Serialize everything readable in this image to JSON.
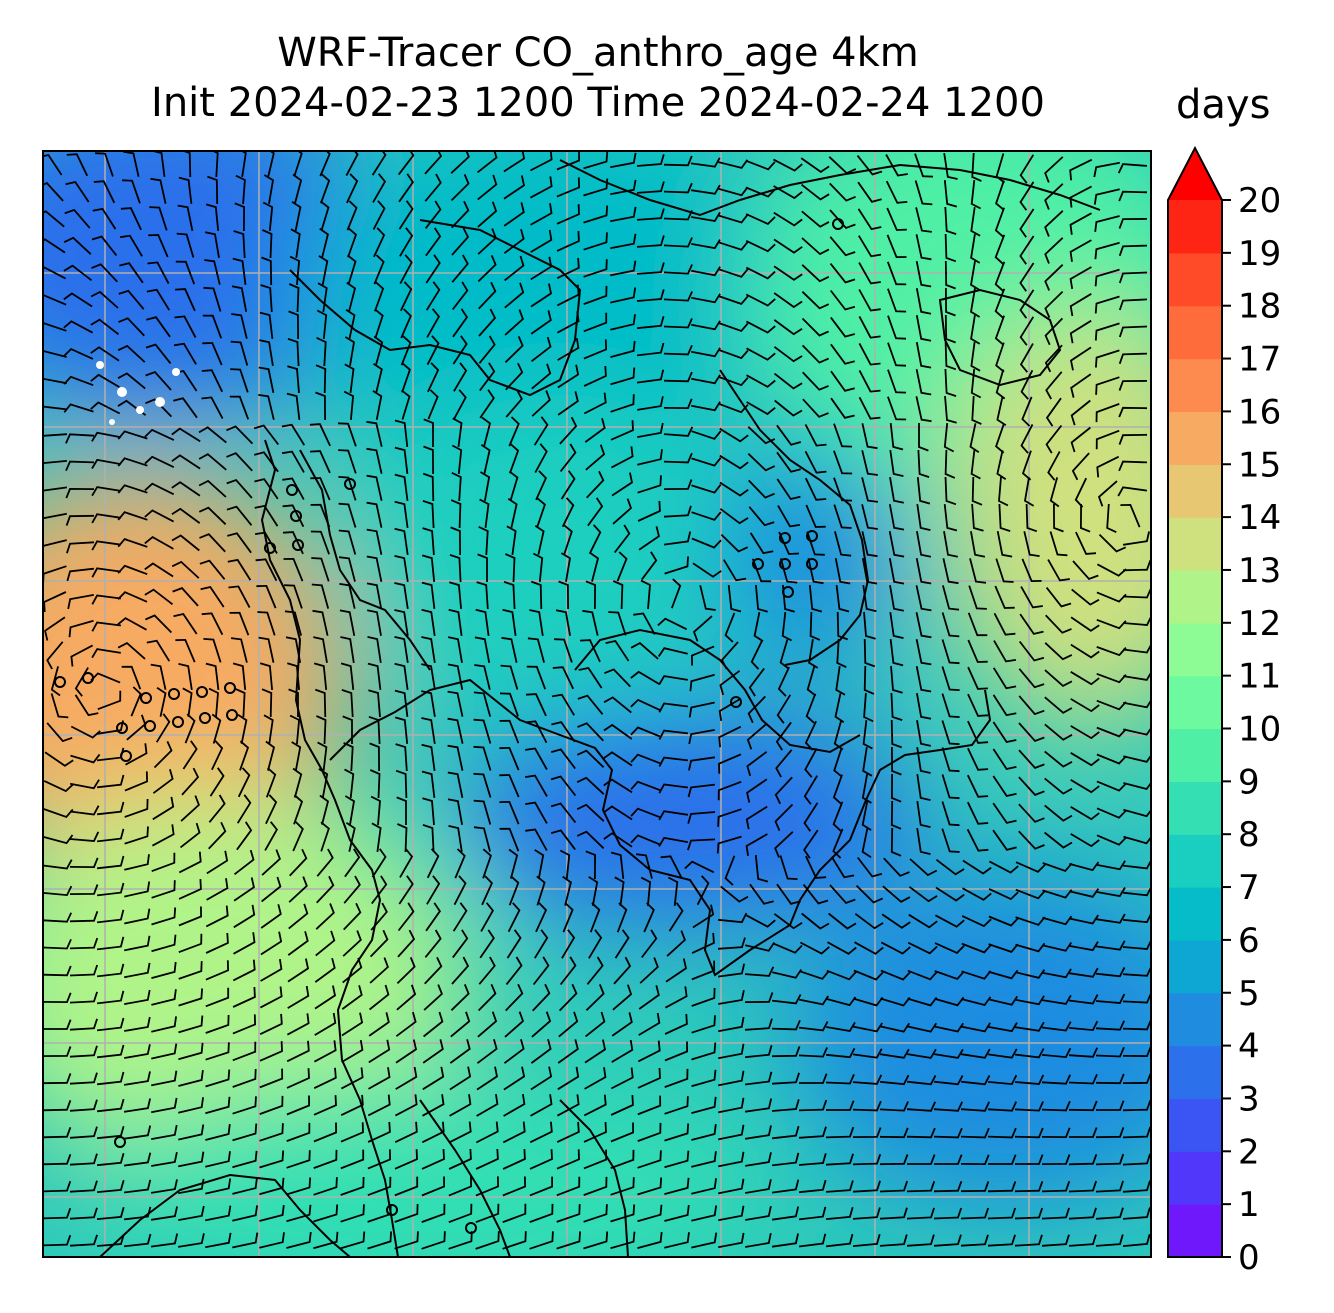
{
  "title": {
    "line1": "WRF-Tracer CO_anthro_age 4km",
    "line2": "Init 2024-02-23 1200 Time 2024-02-24 1200"
  },
  "colorbar": {
    "units": "days",
    "ticks": [
      "0",
      "1",
      "2",
      "3",
      "4",
      "5",
      "6",
      "7",
      "8",
      "9",
      "10",
      "11",
      "12",
      "13",
      "14",
      "15",
      "16",
      "17",
      "18",
      "19",
      "20"
    ],
    "levels": 20,
    "extend": "max",
    "colormap": "rainbow",
    "colors": [
      "#6f18fb",
      "#5037f9",
      "#3b54f4",
      "#2c70eb",
      "#1f8ce0",
      "#0ea6d3",
      "#06bcc8",
      "#1acfbf",
      "#33dfb3",
      "#4ff0a5",
      "#6df9a0",
      "#8efc95",
      "#b0f489",
      "#cfe07f",
      "#e8c772",
      "#f7aa62",
      "#fd8a4f",
      "#ff6c3c",
      "#ff4b27",
      "#ff2514",
      "#ff0000"
    ],
    "extend_color": "#ff0000"
  },
  "map": {
    "grid_color": "#b0b0b0",
    "grid_columns": 7,
    "grid_rows": 7,
    "field": "CO_anthro_age",
    "overlay": "wind barbs",
    "coastline_color": "#000000"
  },
  "chart_data": {
    "type": "heatmap",
    "title": "WRF-Tracer CO_anthro_age 4km",
    "subtitle": "Init 2024-02-23 1200 Time 2024-02-24 1200",
    "colorbar_label": "days",
    "value_range": [
      0,
      20
    ],
    "regions": [
      {
        "area": "upper-left",
        "value": 3
      },
      {
        "area": "upper-center",
        "value": 6
      },
      {
        "area": "upper-right",
        "value": 9
      },
      {
        "area": "center",
        "value": 7
      },
      {
        "area": "center-right depression",
        "value": 4
      },
      {
        "area": "left-middle",
        "value": 15
      },
      {
        "area": "right-middle",
        "value": 13
      },
      {
        "area": "south-center",
        "value": 3
      },
      {
        "area": "lower-left",
        "value": 12
      },
      {
        "area": "lower-right",
        "value": 4
      },
      {
        "area": "bottom",
        "value": 8
      }
    ]
  }
}
